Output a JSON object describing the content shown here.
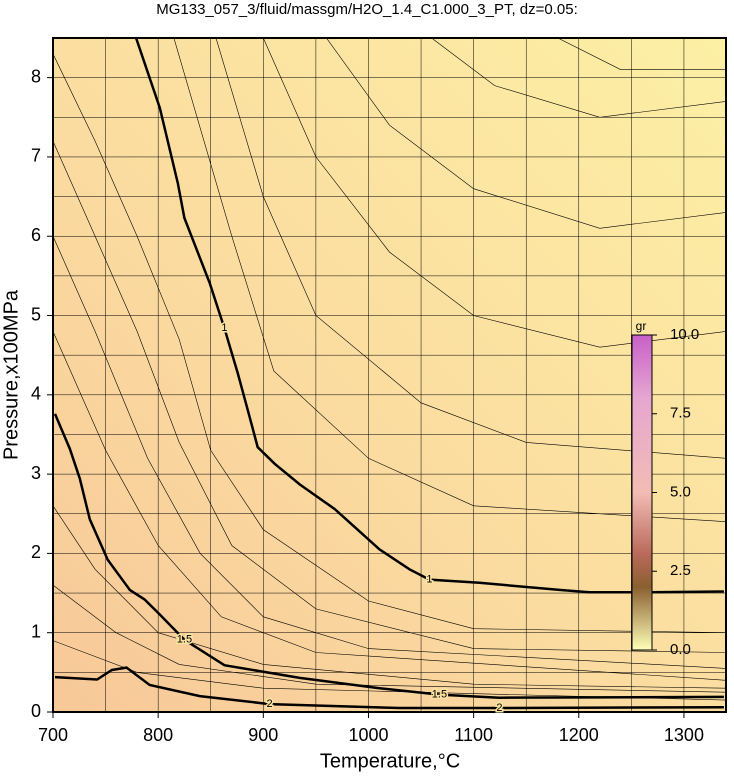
{
  "chart_data": {
    "type": "contour",
    "title": "MG133_057_3/fluid/massgm/H2O_1.4_C1.000_3_PT, dz=0.05:",
    "x_label": "Temperature,°C",
    "y_label": "Pressure,x100MPa",
    "xlim": [
      700,
      1340
    ],
    "ylim": [
      0,
      8.5
    ],
    "xticks": [
      700,
      800,
      900,
      1000,
      1100,
      1200,
      1300
    ],
    "yticks": [
      0,
      1,
      2,
      3,
      4,
      5,
      6,
      7,
      8
    ],
    "xgrid": [
      750,
      850,
      950,
      1050,
      1150,
      1250
    ],
    "ygrid": [
      0.5,
      1.5,
      2.5,
      3.5,
      4.5,
      5.5,
      6.5,
      7.5
    ],
    "contours": [
      {
        "level": 1,
        "x": [
          779,
          801.6,
          818.7,
          825,
          849,
          863,
          875.7,
          885,
          894.7,
          910.8,
          934.6,
          967.8,
          989.6,
          1010.5,
          1039,
          1058,
          1105.5,
          1181.5,
          1210,
          1267,
          1338
        ],
        "y": [
          8.5,
          7.62,
          6.67,
          6.23,
          5.41,
          4.84,
          4.27,
          3.82,
          3.34,
          3.13,
          2.87,
          2.56,
          2.3,
          2.05,
          1.8,
          1.67,
          1.63,
          1.54,
          1.51,
          1.51,
          1.52
        ]
      },
      {
        "level": 1.5,
        "x": [
          701.9,
          716,
          725.6,
          735,
          752,
          773,
          787,
          801.6,
          825,
          863,
          934.6,
          1010.5,
          1067.5,
          1124.5,
          1338
        ],
        "y": [
          3.76,
          3.32,
          2.94,
          2.43,
          1.92,
          1.54,
          1.42,
          1.23,
          0.91,
          0.59,
          0.43,
          0.3,
          0.22,
          0.18,
          0.19
        ]
      },
      {
        "level": 2,
        "x": [
          701.9,
          741.9,
          756,
          770,
          792,
          839.6,
          906,
          1029.5,
          1124.5,
          1338
        ],
        "y": [
          0.44,
          0.41,
          0.53,
          0.56,
          0.34,
          0.2,
          0.1,
          0.05,
          0.05,
          0.06
        ]
      }
    ],
    "thin_contours": [
      {
        "x": [
          815,
          870,
          910,
          1000,
          1100,
          1340
        ],
        "y": [
          8.5,
          6,
          4.3,
          3.2,
          2.6,
          2.4
        ]
      },
      {
        "x": [
          855,
          900,
          950,
          1050,
          1150,
          1340
        ],
        "y": [
          8.5,
          6.5,
          5,
          3.9,
          3.4,
          3.2
        ]
      },
      {
        "x": [
          900,
          950,
          1020,
          1100,
          1220,
          1340
        ],
        "y": [
          8.5,
          7,
          5.8,
          5,
          4.6,
          4.8
        ]
      },
      {
        "x": [
          960,
          1020,
          1100,
          1220,
          1340
        ],
        "y": [
          8.5,
          7.4,
          6.6,
          6.1,
          6.3
        ]
      },
      {
        "x": [
          1060,
          1120,
          1220,
          1340
        ],
        "y": [
          8.5,
          7.9,
          7.5,
          7.7
        ]
      },
      {
        "x": [
          1180,
          1240,
          1340
        ],
        "y": [
          8.5,
          8.1,
          8.1
        ]
      },
      {
        "x": [
          700,
          740,
          780,
          820,
          850,
          900,
          1000,
          1100,
          1340
        ],
        "y": [
          8.3,
          7.2,
          6,
          4.7,
          3.3,
          2.3,
          1.4,
          1.05,
          1
        ]
      },
      {
        "x": [
          700,
          740,
          780,
          820,
          870,
          950,
          1100,
          1340
        ],
        "y": [
          7.2,
          6,
          4.8,
          3.4,
          2.1,
          1.3,
          0.8,
          0.75
        ]
      },
      {
        "x": [
          700,
          740,
          790,
          840,
          900,
          1000,
          1340
        ],
        "y": [
          6,
          4.8,
          3.2,
          2,
          1.2,
          0.8,
          0.55
        ]
      },
      {
        "x": [
          700,
          750,
          800,
          860,
          950,
          1340
        ],
        "y": [
          4.8,
          3.3,
          2.1,
          1.2,
          0.75,
          0.4
        ]
      },
      {
        "x": [
          700,
          740,
          800,
          900,
          1100,
          1340
        ],
        "y": [
          2.6,
          1.8,
          1,
          0.6,
          0.35,
          0.3
        ]
      },
      {
        "x": [
          700,
          760,
          820,
          950,
          1340
        ],
        "y": [
          1.6,
          1,
          0.6,
          0.35,
          0.25
        ]
      },
      {
        "x": [
          700,
          780,
          900,
          1340
        ],
        "y": [
          0.9,
          0.5,
          0.3,
          0.15
        ]
      }
    ],
    "colorbar": {
      "label": "gr",
      "lim": [
        0,
        10
      ],
      "ticks": [
        {
          "value": 0,
          "label": "0.0"
        },
        2.5,
        {
          "value": 5,
          "label": "5.0"
        },
        7.5,
        {
          "value": 10,
          "label": "10.0"
        }
      ]
    }
  }
}
